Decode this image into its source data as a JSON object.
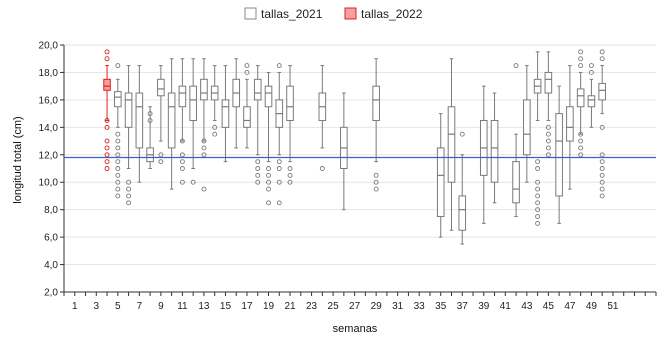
{
  "chart_data": {
    "type": "boxplot",
    "xlabel": "semanas",
    "ylabel": "longitud total (cm)",
    "ylim": [
      2.0,
      20.0
    ],
    "y_ticks": [
      "2,0",
      "4,0",
      "6,0",
      "8,0",
      "10,0",
      "12,0",
      "14,0",
      "16,0",
      "18,0",
      "20,0"
    ],
    "x_range": [
      0,
      55
    ],
    "x_ticks": [
      "1",
      "3",
      "5",
      "7",
      "9",
      "11",
      "13",
      "15",
      "17",
      "19",
      "21",
      "23",
      "25",
      "27",
      "29",
      "31",
      "33",
      "35",
      "37",
      "39",
      "41",
      "43",
      "45",
      "47",
      "49",
      "51"
    ],
    "legend_position": "top-center",
    "reference_line": {
      "y": 11.8,
      "color": "#3a5fbf"
    },
    "series": [
      {
        "name": "tallas_2021",
        "color": "#7a7a7a",
        "boxes": [
          {
            "week": 5,
            "min": 14.0,
            "q1": 15.5,
            "median": 16.2,
            "q3": 16.6,
            "max": 17.5,
            "outliers": [
              18.5,
              13.5,
              13.0,
              12.5,
              12.0,
              11.5,
              11.0,
              10.5,
              10.0,
              9.5,
              9.0
            ]
          },
          {
            "week": 6,
            "min": 11.0,
            "q1": 14.0,
            "median": 16.0,
            "q3": 16.5,
            "max": 18.5,
            "outliers": [
              10.0,
              9.5,
              9.0,
              8.5
            ]
          },
          {
            "week": 7,
            "min": 10.0,
            "q1": 12.5,
            "median": 15.5,
            "q3": 16.5,
            "max": 18.5,
            "outliers": []
          },
          {
            "week": 8,
            "min": 11.0,
            "q1": 11.5,
            "median": 12.0,
            "q3": 12.5,
            "max": 15.5,
            "outliers": [
              15.0,
              14.5
            ]
          },
          {
            "week": 9,
            "min": 13.0,
            "q1": 16.3,
            "median": 16.8,
            "q3": 17.5,
            "max": 18.5,
            "outliers": [
              12.0,
              11.5
            ]
          },
          {
            "week": 10,
            "min": 9.5,
            "q1": 12.5,
            "median": 15.5,
            "q3": 16.5,
            "max": 19.0,
            "outliers": []
          },
          {
            "week": 11,
            "min": 13.0,
            "q1": 15.5,
            "median": 16.5,
            "q3": 17.0,
            "max": 19.0,
            "outliers": [
              13.0,
              12.0,
              11.5,
              11.0,
              10.0
            ]
          },
          {
            "week": 12,
            "min": 11.0,
            "q1": 14.5,
            "median": 16.0,
            "q3": 17.0,
            "max": 19.0,
            "outliers": [
              10.0
            ]
          },
          {
            "week": 13,
            "min": 13.0,
            "q1": 16.0,
            "median": 16.5,
            "q3": 17.5,
            "max": 19.0,
            "outliers": [
              13.0,
              12.5,
              12.0,
              9.5
            ]
          },
          {
            "week": 14,
            "min": 14.5,
            "q1": 16.0,
            "median": 16.5,
            "q3": 17.0,
            "max": 18.5,
            "outliers": [
              14.0,
              13.5
            ]
          },
          {
            "week": 15,
            "min": 11.5,
            "q1": 14.0,
            "median": 15.5,
            "q3": 16.0,
            "max": 18.5,
            "outliers": []
          },
          {
            "week": 16,
            "min": 12.5,
            "q1": 15.5,
            "median": 16.5,
            "q3": 17.5,
            "max": 19.0,
            "outliers": []
          },
          {
            "week": 17,
            "min": 12.5,
            "q1": 14.0,
            "median": 14.5,
            "q3": 15.5,
            "max": 17.5,
            "outliers": [
              18.5,
              18.0
            ]
          },
          {
            "week": 18,
            "min": 12.0,
            "q1": 16.0,
            "median": 16.5,
            "q3": 17.5,
            "max": 18.5,
            "outliers": [
              11.5,
              11.0,
              10.5,
              10.0
            ]
          },
          {
            "week": 19,
            "min": 11.5,
            "q1": 15.5,
            "median": 16.5,
            "q3": 17.0,
            "max": 18.0,
            "outliers": [
              11.0,
              10.5,
              10.0,
              9.5,
              8.5
            ]
          },
          {
            "week": 20,
            "min": 12.0,
            "q1": 14.0,
            "median": 15.0,
            "q3": 16.0,
            "max": 18.0,
            "outliers": [
              18.5,
              11.5,
              11.0,
              10.0,
              8.5
            ]
          },
          {
            "week": 21,
            "min": 11.5,
            "q1": 14.5,
            "median": 15.5,
            "q3": 17.0,
            "max": 18.5,
            "outliers": [
              11.0,
              10.5,
              10.0
            ]
          },
          {
            "week": 24,
            "min": 12.5,
            "q1": 14.5,
            "median": 15.5,
            "q3": 16.5,
            "max": 18.5,
            "outliers": [
              11.0
            ]
          },
          {
            "week": 26,
            "min": 8.0,
            "q1": 11.0,
            "median": 12.5,
            "q3": 14.0,
            "max": 16.5,
            "outliers": []
          },
          {
            "week": 29,
            "min": 11.5,
            "q1": 14.5,
            "median": 16.0,
            "q3": 17.0,
            "max": 19.0,
            "outliers": [
              10.5,
              10.0,
              9.5
            ]
          },
          {
            "week": 35,
            "min": 6.0,
            "q1": 7.5,
            "median": 10.5,
            "q3": 12.5,
            "max": 15.0,
            "outliers": []
          },
          {
            "week": 36,
            "min": 6.5,
            "q1": 10.0,
            "median": 13.5,
            "q3": 15.5,
            "max": 19.0,
            "outliers": []
          },
          {
            "week": 37,
            "min": 5.5,
            "q1": 6.5,
            "median": 8.0,
            "q3": 9.0,
            "max": 12.0,
            "outliers": [
              13.5
            ]
          },
          {
            "week": 39,
            "min": 7.0,
            "q1": 10.5,
            "median": 12.5,
            "q3": 14.5,
            "max": 17.0,
            "outliers": []
          },
          {
            "week": 40,
            "min": 8.5,
            "q1": 10.0,
            "median": 12.5,
            "q3": 14.5,
            "max": 16.5,
            "outliers": []
          },
          {
            "week": 42,
            "min": 7.5,
            "q1": 8.5,
            "median": 9.5,
            "q3": 11.5,
            "max": 13.5,
            "outliers": [
              18.5
            ]
          },
          {
            "week": 43,
            "min": 10.0,
            "q1": 12.0,
            "median": 13.5,
            "q3": 16.0,
            "max": 18.5,
            "outliers": []
          },
          {
            "week": 44,
            "min": 14.5,
            "q1": 16.5,
            "median": 17.0,
            "q3": 17.5,
            "max": 19.5,
            "outliers": [
              11.5,
              11.0,
              10.0,
              9.5,
              9.0,
              8.5,
              8.0,
              7.5,
              7.0
            ]
          },
          {
            "week": 45,
            "min": 14.5,
            "q1": 16.5,
            "median": 17.5,
            "q3": 18.0,
            "max": 19.5,
            "outliers": [
              14.0,
              13.5,
              13.0,
              12.5,
              12.0
            ]
          },
          {
            "week": 46,
            "min": 7.0,
            "q1": 9.0,
            "median": 13.0,
            "q3": 15.0,
            "max": 17.0,
            "outliers": []
          },
          {
            "week": 47,
            "min": 9.5,
            "q1": 13.0,
            "median": 14.0,
            "q3": 15.5,
            "max": 18.5,
            "outliers": []
          },
          {
            "week": 48,
            "min": 13.5,
            "q1": 15.5,
            "median": 16.3,
            "q3": 16.8,
            "max": 18.0,
            "outliers": [
              19.5,
              19.0,
              18.5,
              13.5,
              13.0,
              12.5,
              12.0
            ]
          },
          {
            "week": 49,
            "min": 14.0,
            "q1": 15.5,
            "median": 16.0,
            "q3": 16.3,
            "max": 17.5,
            "outliers": [
              18.5,
              18.0
            ]
          },
          {
            "week": 50,
            "min": 15.0,
            "q1": 16.0,
            "median": 16.7,
            "q3": 17.2,
            "max": 18.5,
            "outliers": [
              19.5,
              19.0,
              14.0,
              12.0,
              11.5,
              11.0,
              10.5,
              10.0,
              9.5,
              9.0
            ]
          }
        ]
      },
      {
        "name": "tallas_2022",
        "color": "#e02020",
        "fill": "#f4a0a0",
        "boxes": [
          {
            "week": 4,
            "min": 14.5,
            "q1": 16.7,
            "median": 17.0,
            "q3": 17.5,
            "max": 18.5,
            "outliers": [
              19.5,
              19.0,
              14.5,
              14.0,
              13.0,
              12.5,
              12.0,
              11.5,
              11.0
            ]
          }
        ]
      }
    ]
  }
}
